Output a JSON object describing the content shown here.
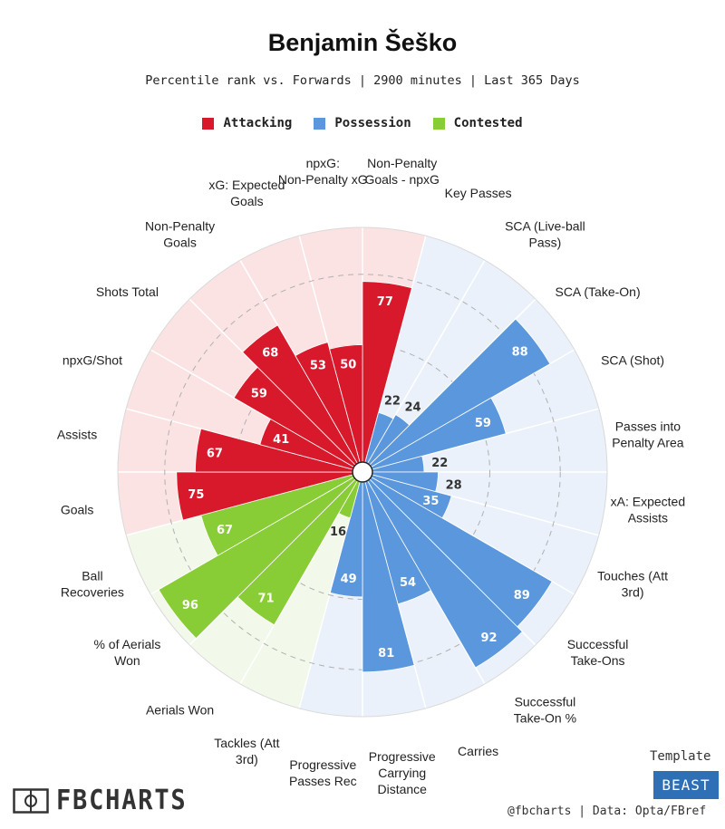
{
  "title": "Benjamin Šeško",
  "subtitle": "Percentile rank vs. Forwards | 2900 minutes | Last 365 Days",
  "legend": [
    {
      "label": "Attacking",
      "color": "#d7192b"
    },
    {
      "label": "Possession",
      "color": "#5b97dd"
    },
    {
      "label": "Contested",
      "color": "#88cc36"
    }
  ],
  "colors": {
    "attacking_bg": "#fbe3e3",
    "possession_bg": "#eaf1fa",
    "contested_bg": "#f2f8ea"
  },
  "chart_data": {
    "type": "polar-bar",
    "scale": [
      0,
      100
    ],
    "categories": [
      {
        "label": "Non-Penalty Goals - npxG",
        "value": 77,
        "group": "Attacking"
      },
      {
        "label": "Key Passes",
        "value": 22,
        "group": "Possession"
      },
      {
        "label": "SCA (Live-ball Pass)",
        "value": 24,
        "group": "Possession"
      },
      {
        "label": "SCA (Take-On)",
        "value": 88,
        "group": "Possession"
      },
      {
        "label": "SCA (Shot)",
        "value": 59,
        "group": "Possession"
      },
      {
        "label": "Passes into Penalty Area",
        "value": 22,
        "group": "Possession"
      },
      {
        "label": "xA: Expected Assists",
        "value": 28,
        "group": "Possession"
      },
      {
        "label": "Touches (Att 3rd)",
        "value": 35,
        "group": "Possession"
      },
      {
        "label": "Successful Take-Ons",
        "value": 89,
        "group": "Possession"
      },
      {
        "label": "Successful Take-On %",
        "value": 92,
        "group": "Possession"
      },
      {
        "label": "Carries",
        "value": 54,
        "group": "Possession"
      },
      {
        "label": "Progressive Carrying Distance",
        "value": 81,
        "group": "Possession"
      },
      {
        "label": "Progressive Passes Rec",
        "value": 49,
        "group": "Possession"
      },
      {
        "label": "Tackles (Att 3rd)",
        "value": 16,
        "group": "Contested"
      },
      {
        "label": "Aerials Won",
        "value": 71,
        "group": "Contested"
      },
      {
        "label": "% of Aerials Won",
        "value": 96,
        "group": "Contested"
      },
      {
        "label": "Ball Recoveries",
        "value": 67,
        "group": "Contested"
      },
      {
        "label": "Goals",
        "value": 75,
        "group": "Attacking"
      },
      {
        "label": "Assists",
        "value": 67,
        "group": "Attacking"
      },
      {
        "label": "npxG/Shot",
        "value": 41,
        "group": "Attacking"
      },
      {
        "label": "Shots Total",
        "value": 59,
        "group": "Attacking"
      },
      {
        "label": "Non-Penalty Goals",
        "value": 68,
        "group": "Attacking"
      },
      {
        "label": "xG: Expected Goals",
        "value": 53,
        "group": "Attacking"
      },
      {
        "label": "npxG: Non-Penalty xG",
        "value": 50,
        "group": "Attacking"
      }
    ]
  },
  "footer": {
    "brand": "FBCHARTS",
    "template_label": "Template",
    "template_name": "BEAST",
    "credits": "@fbcharts | Data: Opta/FBref"
  }
}
